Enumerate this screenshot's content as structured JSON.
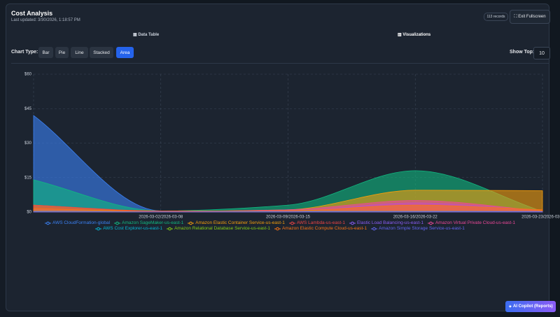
{
  "header": {
    "title": "Cost Analysis",
    "subtitle": "Last updated: 3/30/2026, 1:18:57 PM",
    "records": "113 records",
    "exit": "Exit Fullscreen"
  },
  "tabs": [
    "Data Table",
    "Visualizations"
  ],
  "controls": {
    "chart_type_label": "Chart Type:",
    "chart_types": [
      "Bar",
      "Pie",
      "Line",
      "Stacked",
      "Area"
    ],
    "active": 4,
    "show_top_label": "Show Top:",
    "show_top": 10
  },
  "chart_data": {
    "type": "area",
    "categories": [
      null,
      "2026-03-02/2026-03-08",
      "2026-03-09/2026-03-15",
      "2026-03-16/2026-03-22",
      "2026-03-23/2026-03-2"
    ],
    "ylim": [
      0,
      60
    ],
    "yticks": [
      {
        "value": 0,
        "label": "$0"
      },
      {
        "value": 15,
        "label": "$15"
      },
      {
        "value": 30,
        "label": "$30"
      },
      {
        "value": 45,
        "label": "$45"
      },
      {
        "value": 60,
        "label": "$60"
      }
    ],
    "grid": true,
    "series": [
      {
        "name": "AWS CloudFormation-global",
        "color": "#3b82f6",
        "values": [
          42,
          0.5,
          0.3,
          0.5,
          0.3
        ]
      },
      {
        "name": "Amazon SageMaker-us-east-1",
        "color": "#10b981",
        "values": [
          14,
          0.5,
          3,
          18,
          0.3
        ]
      },
      {
        "name": "Amazon Elastic Container Service-us-east-1",
        "color": "#f59e0b",
        "values": [
          3,
          0.3,
          1,
          9.5,
          9.3
        ]
      },
      {
        "name": "AWS Lambda-us-east-1",
        "color": "#ef4444",
        "values": [
          3,
          0.5,
          0.5,
          1.5,
          0.5
        ]
      },
      {
        "name": "Elastic Load Balancing-us-east-1",
        "color": "#8b5cf6",
        "values": [
          1,
          0.2,
          0.5,
          4,
          0.5
        ]
      },
      {
        "name": "Amazon Virtual Private Cloud-us-east-1",
        "color": "#ec4899",
        "values": [
          0.5,
          0.3,
          1,
          5,
          0.5
        ]
      },
      {
        "name": "AWS Cost Explorer-us-east-1",
        "color": "#06b6d4",
        "values": [
          0.5,
          0.3,
          0.5,
          0.5,
          0.3
        ]
      },
      {
        "name": "Amazon Relational Database Service-us-east-1",
        "color": "#84cc16",
        "values": [
          0.3,
          0.2,
          0.3,
          0.5,
          0.3
        ]
      },
      {
        "name": "Amazon Elastic Compute Cloud-us-east-1",
        "color": "#f97316",
        "values": [
          1.5,
          0.3,
          0.5,
          3,
          1
        ]
      },
      {
        "name": "Amazon Simple Storage Service-us-east-1",
        "color": "#6366f1",
        "values": [
          0.2,
          0.1,
          0.2,
          0.3,
          0.2
        ]
      }
    ]
  },
  "copilot": "AI Copilot (Reports)"
}
